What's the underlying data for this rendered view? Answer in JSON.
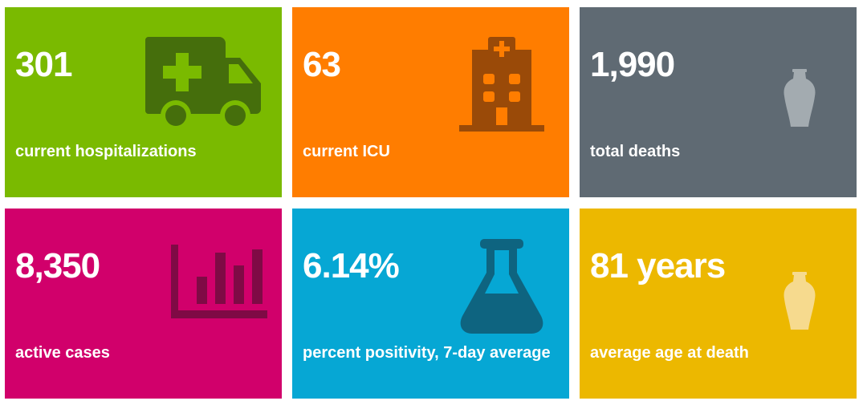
{
  "tiles": [
    {
      "value": "301",
      "label": "current hospitalizations",
      "icon": "ambulance-icon",
      "background": "#7aba00",
      "icon_color": "#456e0c"
    },
    {
      "value": "63",
      "label": "current ICU",
      "icon": "hospital-building-icon",
      "background": "#ff7d00",
      "icon_color": "#9a4a08"
    },
    {
      "value": "1,990",
      "label": "total deaths",
      "icon": "urn-icon",
      "background": "#5f6a73",
      "icon_color": "#a3abb0"
    },
    {
      "value": "8,350",
      "label": "active cases",
      "icon": "bar-chart-icon",
      "background": "#d1006b",
      "icon_color": "#7f0a45"
    },
    {
      "value": "6.14%",
      "label": "percent positivity, 7-day average",
      "icon": "flask-icon",
      "background": "#06a7d4",
      "icon_color": "#0e6480"
    },
    {
      "value": "81 years",
      "label": "average age at death",
      "icon": "urn-icon",
      "background": "#ecb800",
      "icon_color": "#f6da8e"
    }
  ]
}
